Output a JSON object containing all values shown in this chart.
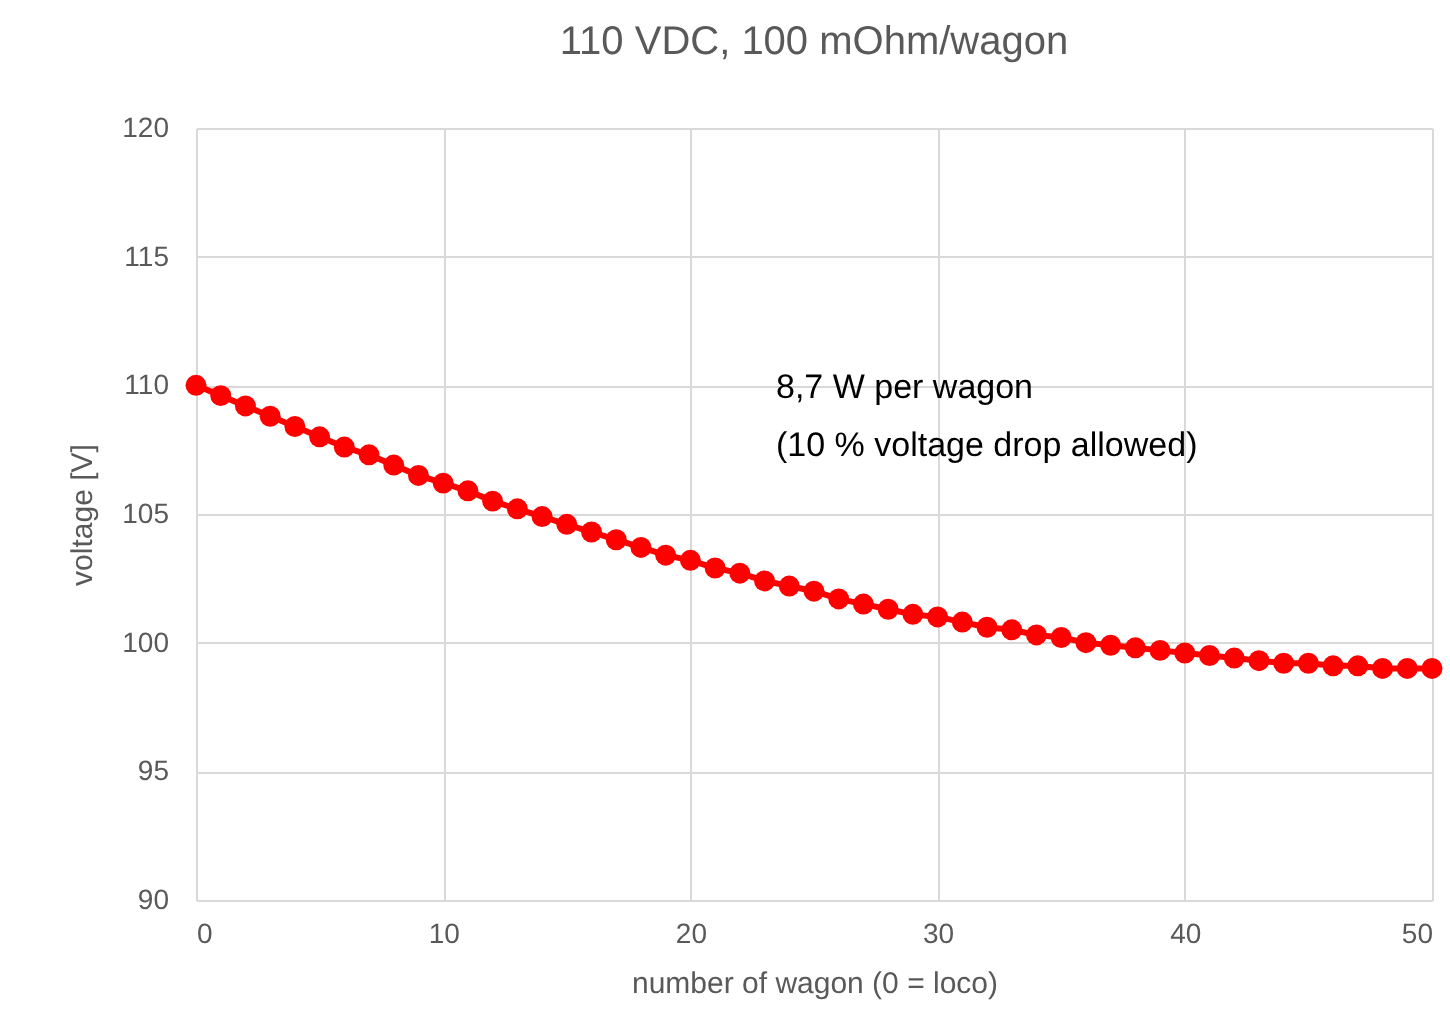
{
  "chart_data": {
    "type": "line",
    "title": "110 VDC, 100 mOhm/wagon",
    "xlabel": "number of wagon (0 = loco)",
    "ylabel": "voltage [V]",
    "annotations": [
      "8,7 W per wagon",
      "(10 % voltage drop allowed)"
    ],
    "x": [
      0,
      1,
      2,
      3,
      4,
      5,
      6,
      7,
      8,
      9,
      10,
      11,
      12,
      13,
      14,
      15,
      16,
      17,
      18,
      19,
      20,
      21,
      22,
      23,
      24,
      25,
      26,
      27,
      28,
      29,
      30,
      31,
      32,
      33,
      34,
      35,
      36,
      37,
      38,
      39,
      40,
      41,
      42,
      43,
      44,
      45,
      46,
      47,
      48,
      49,
      50
    ],
    "series": [
      {
        "color": "#ff0000",
        "values": [
          110,
          109.6,
          109.2,
          108.8,
          108.4,
          108.0,
          107.6,
          107.3,
          106.9,
          106.5,
          106.2,
          105.9,
          105.5,
          105.2,
          104.9,
          104.6,
          104.3,
          104.0,
          103.7,
          103.4,
          103.2,
          102.9,
          102.7,
          102.4,
          102.2,
          102.0,
          101.7,
          101.5,
          101.3,
          101.1,
          101.0,
          100.8,
          100.6,
          100.5,
          100.3,
          100.2,
          100.0,
          99.9,
          99.8,
          99.7,
          99.6,
          99.5,
          99.4,
          99.3,
          99.2,
          99.2,
          99.1,
          99.1,
          99.0,
          99.0,
          99.0
        ]
      }
    ],
    "xlim": [
      0,
      50
    ],
    "xticks": [
      0,
      10,
      20,
      30,
      40,
      50
    ],
    "ylim": [
      90,
      120
    ],
    "yticks": [
      90,
      95,
      100,
      105,
      110,
      115,
      120
    ],
    "grid": true,
    "marker": "circle",
    "line_style": "solid"
  }
}
